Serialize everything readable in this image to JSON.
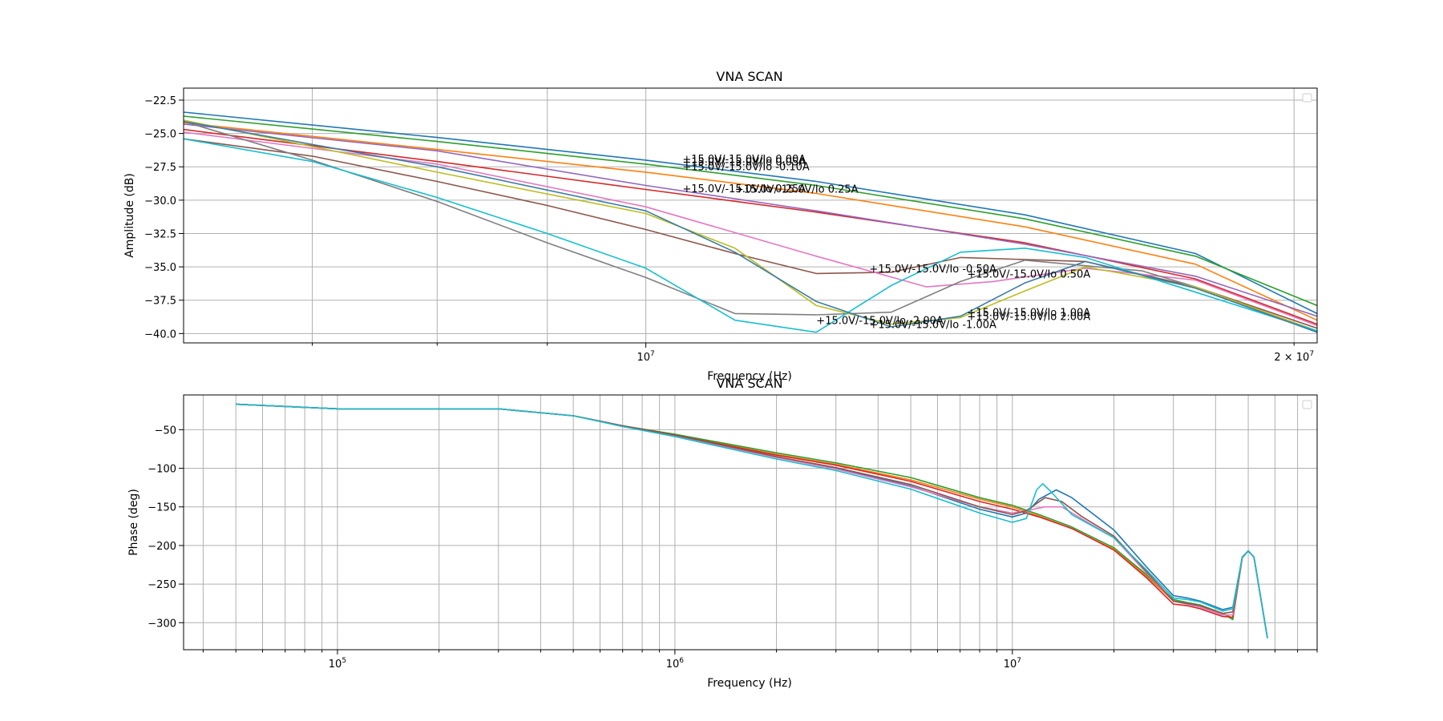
{
  "chart_data": [
    {
      "type": "line",
      "title": "VNA SCAN",
      "xlabel": "Frequency (Hz)",
      "ylabel": "Amplitude (dB)",
      "xscale": "log",
      "xlim": [
        6100000,
        20500000
      ],
      "ylim": [
        -40.7,
        -21.6
      ],
      "grid": true,
      "legend": "top-right (empty)",
      "x_ticks": [
        {
          "value": 10000000,
          "label": "10",
          "sup": "7"
        },
        {
          "value": 20000000,
          "label": "2 × 10",
          "sup": "7"
        }
      ],
      "y_ticks": [
        -22.5,
        -25.0,
        -27.5,
        -30.0,
        -32.5,
        -35.0,
        -37.5,
        -40.0
      ],
      "y_tick_labels": [
        "−22.5",
        "−25.0",
        "−27.5",
        "−30.0",
        "−32.5",
        "−35.0",
        "−37.5",
        "−40.0"
      ],
      "annotations": [
        {
          "text": "+15.0V/-15.0V/Io 0.00A",
          "x": 10400000,
          "y": -27.2
        },
        {
          "text": "+15.0V/-15.0V/Io 0.05A",
          "x": 10400000,
          "y": -27.4
        },
        {
          "text": "+15.0V/-15.0V/Io -0.10A",
          "x": 10400000,
          "y": -27.75
        },
        {
          "text": "+15.0V/-15.0V/Io 0.25A",
          "x": 10400000,
          "y": -29.4
        },
        {
          "text": "+15.0V/-15.0V/Io 0.25A",
          "x": 11000000,
          "y": -29.45
        },
        {
          "text": "+15.0V/-15.0V/Io -0.50A",
          "x": 12700000,
          "y": -35.4
        },
        {
          "text": "+15.0V/-15.0V/Io 0.50A",
          "x": 14100000,
          "y": -35.8
        },
        {
          "text": "+15.0V/-15.0V/Io 1.00A",
          "x": 14100000,
          "y": -38.7
        },
        {
          "text": "+15.0V/-15.0V/Io 2.00A",
          "x": 14100000,
          "y": -39.0
        },
        {
          "text": "+15.0V/-15.0V/Io -1.00A",
          "x": 12700000,
          "y": -39.6
        },
        {
          "text": "+15.0V/-15.0V/Io -2.00A",
          "x": 12000000,
          "y": -39.3
        }
      ],
      "series": [
        {
          "color": "#1f77b4",
          "x": [
            6100000,
            8000000,
            10000000,
            12000000,
            15000000,
            18000000,
            20500000
          ],
          "y": [
            -23.4,
            -25.3,
            -27.0,
            -28.6,
            -31.1,
            -34.0,
            -38.5
          ]
        },
        {
          "color": "#ff7f0e",
          "x": [
            6100000,
            8000000,
            10000000,
            12000000,
            15000000,
            18000000,
            20500000
          ],
          "y": [
            -24.2,
            -26.2,
            -27.9,
            -29.5,
            -32.0,
            -34.8,
            -39.0
          ]
        },
        {
          "color": "#2ca02c",
          "x": [
            6100000,
            8000000,
            10000000,
            12000000,
            15000000,
            18000000,
            20500000
          ],
          "y": [
            -23.7,
            -25.6,
            -27.3,
            -28.9,
            -31.4,
            -34.2,
            -37.9
          ]
        },
        {
          "color": "#d62728",
          "x": [
            6100000,
            8000000,
            10000000,
            12000000,
            15000000,
            18000000,
            20500000
          ],
          "y": [
            -24.7,
            -27.1,
            -29.2,
            -30.9,
            -33.2,
            -35.9,
            -39.3
          ]
        },
        {
          "color": "#9467bd",
          "x": [
            6100000,
            8000000,
            10000000,
            12000000,
            15000000,
            18000000,
            20500000
          ],
          "y": [
            -24.3,
            -26.3,
            -28.9,
            -30.8,
            -33.3,
            -35.7,
            -38.7
          ]
        },
        {
          "color": "#8c564b",
          "x": [
            6100000,
            7000000,
            8000000,
            9000000,
            10000000,
            11000000,
            12000000,
            13000000,
            14000000,
            16000000,
            18000000,
            20500000
          ],
          "y": [
            -25.4,
            -26.7,
            -28.6,
            -30.4,
            -32.2,
            -34.0,
            -35.5,
            -35.4,
            -34.3,
            -34.6,
            -36.5,
            -39.6
          ]
        },
        {
          "color": "#e377c2",
          "x": [
            6100000,
            8000000,
            10000000,
            12000000,
            13500000,
            14500000,
            16000000,
            18000000,
            20500000
          ],
          "y": [
            -24.9,
            -27.3,
            -30.5,
            -34.2,
            -36.5,
            -36.1,
            -35.1,
            -36.0,
            -39.4
          ]
        },
        {
          "color": "#7f7f7f",
          "x": [
            6100000,
            7000000,
            8000000,
            9000000,
            10000000,
            11000000,
            12000000,
            13000000,
            14000000,
            15000000,
            17000000,
            18000000,
            20500000
          ],
          "y": [
            -24.1,
            -27.0,
            -30.1,
            -33.2,
            -35.8,
            -38.5,
            -38.6,
            -38.4,
            -36.1,
            -34.5,
            -35.3,
            -36.5,
            -39.9
          ]
        },
        {
          "color": "#bcbd22",
          "x": [
            6100000,
            8000000,
            10000000,
            11000000,
            12000000,
            13000000,
            14000000,
            15000000,
            16000000,
            18000000,
            20500000
          ],
          "y": [
            -24.0,
            -27.9,
            -31.0,
            -33.6,
            -37.9,
            -39.3,
            -38.8,
            -36.8,
            -35.0,
            -36.5,
            -39.8
          ]
        },
        {
          "color": "#17becf",
          "x": [
            6100000,
            7000000,
            8000000,
            9000000,
            10000000,
            11000000,
            12000000,
            13000000,
            14000000,
            15000000,
            16000000,
            18000000,
            20500000
          ],
          "y": [
            -25.4,
            -27.1,
            -29.8,
            -32.5,
            -35.1,
            -39.0,
            -39.9,
            -36.4,
            -33.9,
            -33.6,
            -34.3,
            -36.9,
            -39.8
          ]
        },
        {
          "color": "#3a7ca5",
          "x": [
            6100000,
            8000000,
            10000000,
            11000000,
            12000000,
            13000000,
            14000000,
            15000000,
            16000000,
            18000000,
            20500000
          ],
          "y": [
            -24.1,
            -27.5,
            -30.8,
            -33.9,
            -37.6,
            -39.5,
            -38.7,
            -36.2,
            -34.6,
            -36.6,
            -39.9
          ]
        }
      ]
    },
    {
      "type": "line",
      "title": "VNA SCAN",
      "xlabel": "Frequency (Hz)",
      "ylabel": "Phase (deg)",
      "xscale": "log",
      "xlim": [
        35000,
        80000000
      ],
      "ylim": [
        -335,
        -5
      ],
      "grid": true,
      "legend": "top-right (empty)",
      "x_ticks": [
        {
          "value": 100000,
          "label": "10",
          "sup": "5"
        },
        {
          "value": 1000000,
          "label": "10",
          "sup": "6"
        },
        {
          "value": 10000000,
          "label": "10",
          "sup": "7"
        }
      ],
      "y_ticks": [
        -50,
        -100,
        -150,
        -200,
        -250,
        -300
      ],
      "y_tick_labels": [
        "−50",
        "−100",
        "−150",
        "−200",
        "−250",
        "−300"
      ],
      "series": [
        {
          "color": "#1f77b4",
          "x": [
            50000,
            100000,
            200000,
            300000,
            500000,
            700000,
            1000000,
            2000000,
            3000000,
            5000000,
            8000000,
            10000000,
            11000000,
            12000000,
            13500000,
            15000000,
            20000000,
            25000000,
            30000000,
            33000000,
            36000000,
            42000000,
            45000000,
            48000000,
            50000000,
            52000000,
            57000000
          ],
          "y": [
            -17,
            -23,
            -23,
            -23,
            -32,
            -45,
            -57,
            -85,
            -100,
            -123,
            -153,
            -163,
            -158,
            -140,
            -128,
            -138,
            -180,
            -228,
            -265,
            -268,
            -272,
            -283,
            -280,
            -215,
            -207,
            -215,
            -320
          ]
        },
        {
          "color": "#ff7f0e",
          "x": [
            50000,
            100000,
            200000,
            300000,
            500000,
            700000,
            1000000,
            2000000,
            3000000,
            5000000,
            8000000,
            10000000,
            12000000,
            15000000,
            20000000,
            25000000,
            30000000,
            33000000,
            36000000,
            42000000,
            45000000,
            48000000,
            50000000,
            52000000,
            57000000
          ],
          "y": [
            -17,
            -23,
            -23,
            -23,
            -32,
            -45,
            -57,
            -82,
            -95,
            -115,
            -140,
            -150,
            -162,
            -178,
            -205,
            -240,
            -272,
            -276,
            -280,
            -288,
            -294,
            -215,
            -207,
            -215,
            -320
          ]
        },
        {
          "color": "#2ca02c",
          "x": [
            50000,
            100000,
            200000,
            300000,
            500000,
            700000,
            1000000,
            2000000,
            3000000,
            5000000,
            8000000,
            10000000,
            12000000,
            15000000,
            20000000,
            25000000,
            30000000,
            33000000,
            36000000,
            42000000,
            45000000,
            48000000,
            50000000,
            52000000,
            57000000
          ],
          "y": [
            -17,
            -23,
            -23,
            -23,
            -32,
            -45,
            -56,
            -80,
            -93,
            -112,
            -138,
            -148,
            -160,
            -176,
            -203,
            -238,
            -270,
            -274,
            -277,
            -288,
            -296,
            -216,
            -207,
            -215,
            -320
          ]
        },
        {
          "color": "#d62728",
          "x": [
            50000,
            100000,
            200000,
            300000,
            500000,
            700000,
            1000000,
            2000000,
            3000000,
            5000000,
            8000000,
            10000000,
            12000000,
            15000000,
            20000000,
            25000000,
            30000000,
            33000000,
            36000000,
            42000000,
            45000000,
            48000000,
            50000000,
            52000000,
            57000000
          ],
          "y": [
            -17,
            -23,
            -23,
            -23,
            -32,
            -45,
            -57,
            -83,
            -96,
            -117,
            -143,
            -153,
            -163,
            -178,
            -206,
            -242,
            -276,
            -278,
            -282,
            -292,
            -293,
            -215,
            -207,
            -215,
            -320
          ]
        },
        {
          "color": "#e377c2",
          "x": [
            50000,
            100000,
            200000,
            300000,
            500000,
            700000,
            1000000,
            2000000,
            3000000,
            5000000,
            8000000,
            10000000,
            11000000,
            12500000,
            14000000,
            16000000,
            20000000,
            25000000,
            30000000,
            36000000,
            42000000,
            45000000,
            48000000,
            50000000,
            52000000,
            57000000
          ],
          "y": [
            -17,
            -23,
            -23,
            -23,
            -32,
            -45,
            -58,
            -86,
            -101,
            -124,
            -150,
            -158,
            -155,
            -150,
            -150,
            -165,
            -190,
            -236,
            -272,
            -280,
            -290,
            -290,
            -215,
            -207,
            -215,
            -320
          ]
        },
        {
          "color": "#8c564b",
          "x": [
            50000,
            100000,
            200000,
            300000,
            500000,
            700000,
            1000000,
            2000000,
            3000000,
            5000000,
            8000000,
            10000000,
            11000000,
            12500000,
            14000000,
            16000000,
            20000000,
            25000000,
            30000000,
            36000000,
            42000000,
            45000000,
            48000000,
            50000000,
            52000000,
            57000000
          ],
          "y": [
            -17,
            -23,
            -23,
            -23,
            -32,
            -45,
            -57,
            -85,
            -99,
            -121,
            -150,
            -160,
            -155,
            -138,
            -143,
            -162,
            -188,
            -234,
            -272,
            -278,
            -288,
            -286,
            -215,
            -207,
            -215,
            -320
          ]
        },
        {
          "color": "#17becf",
          "x": [
            50000,
            100000,
            200000,
            300000,
            500000,
            700000,
            1000000,
            2000000,
            3000000,
            5000000,
            8000000,
            10000000,
            11000000,
            11800000,
            12300000,
            13000000,
            15000000,
            20000000,
            25000000,
            30000000,
            33000000,
            36000000,
            42000000,
            45000000,
            48000000,
            50000000,
            52000000,
            57000000
          ],
          "y": [
            -17,
            -23,
            -23,
            -23,
            -32,
            -46,
            -59,
            -88,
            -103,
            -127,
            -158,
            -170,
            -165,
            -128,
            -120,
            -130,
            -160,
            -190,
            -232,
            -268,
            -270,
            -273,
            -285,
            -282,
            -215,
            -207,
            -215,
            -320
          ]
        }
      ]
    }
  ]
}
